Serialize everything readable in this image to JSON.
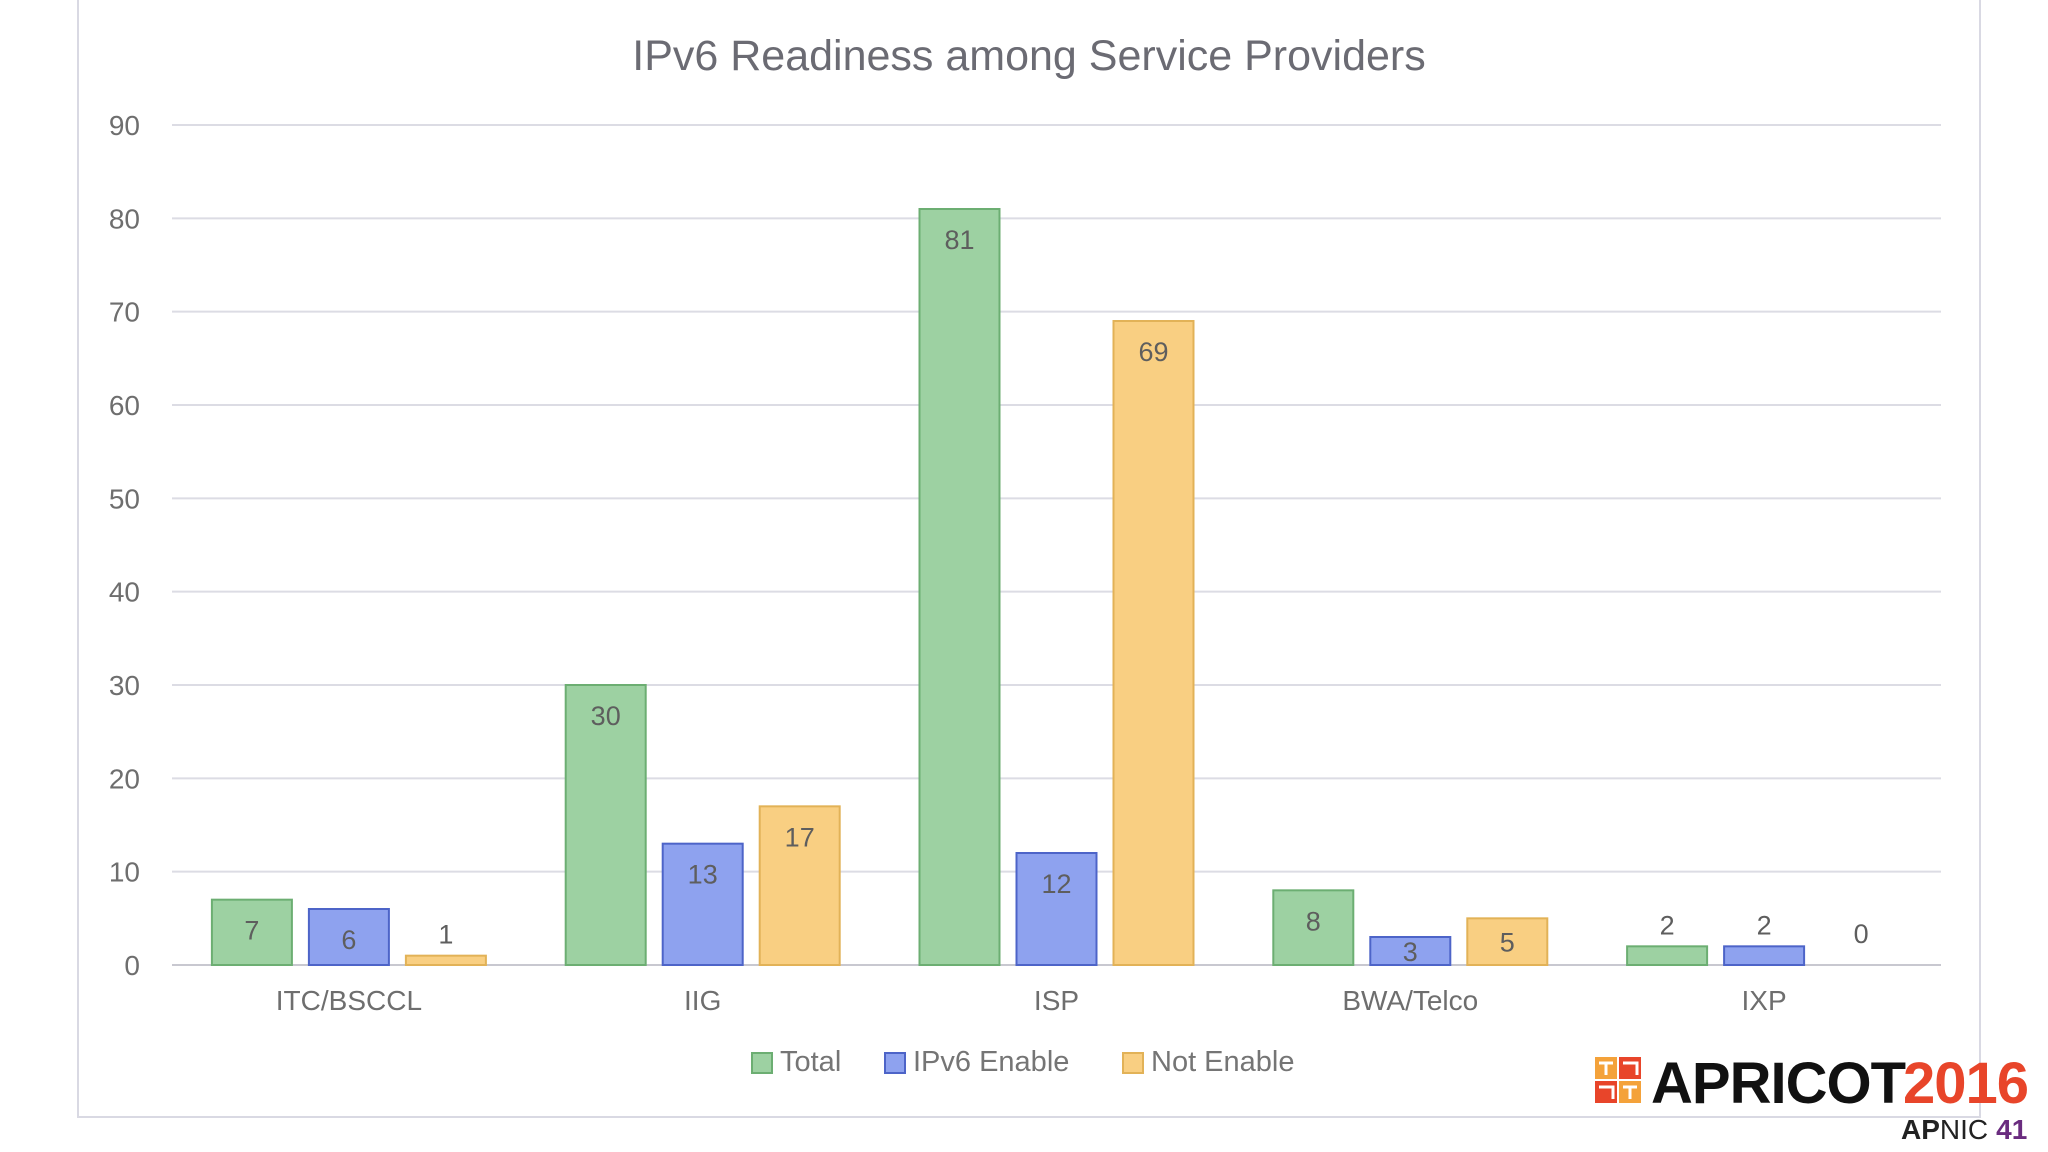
{
  "chart_data": {
    "type": "bar",
    "title": "IPv6 Readiness among Service Providers",
    "categories": [
      "ITC/BSCCL",
      "IIG",
      "ISP",
      "BWA/Telco",
      "IXP"
    ],
    "series": [
      {
        "name": "Total",
        "values": [
          7,
          30,
          81,
          8,
          2
        ],
        "color": "#9dd1a2",
        "stroke": "#6cae72"
      },
      {
        "name": "IPv6 Enable",
        "values": [
          6,
          13,
          12,
          3,
          2
        ],
        "color": "#8ea2ef",
        "stroke": "#4d64c8"
      },
      {
        "name": "Not Enable",
        "values": [
          1,
          17,
          69,
          5,
          0
        ],
        "color": "#f9cf82",
        "stroke": "#e2b257"
      }
    ],
    "ylim": [
      0,
      90
    ],
    "yticks": [
      0,
      10,
      20,
      30,
      40,
      50,
      60,
      70,
      80,
      90
    ],
    "grid": true,
    "legend_position": "bottom",
    "xlabel": "",
    "ylabel": ""
  },
  "branding": {
    "event_word": "APRICOT",
    "event_year": "2016",
    "sub_ap": "AP",
    "sub_nic": "NIC",
    "sub_num": "41"
  }
}
